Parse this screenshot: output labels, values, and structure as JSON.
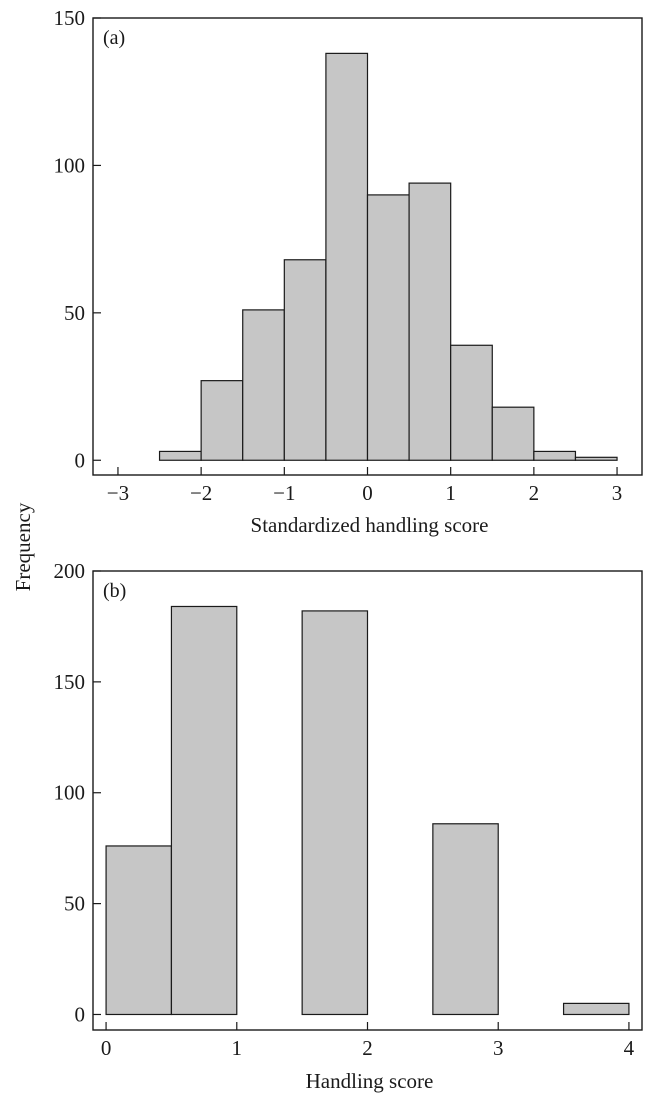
{
  "shared_ylabel": "Frequency",
  "chart_data": [
    {
      "type": "bar",
      "panel_label": "(a)",
      "xlabel": "Standardized handling score",
      "ylabel": "Frequency",
      "xlim": [
        -3.3,
        3.3
      ],
      "ylim": [
        -5,
        150
      ],
      "xticks": [
        -3,
        -2,
        -1,
        0,
        1,
        2,
        3
      ],
      "xtick_labels": [
        "−3",
        "−2",
        "−1",
        "0",
        "1",
        "2",
        "3"
      ],
      "yticks": [
        0,
        50,
        100,
        150
      ],
      "ytick_labels": [
        "0",
        "50",
        "100",
        "150"
      ],
      "bin_edges": [
        -2.5,
        -2.0,
        -1.5,
        -1.0,
        -0.5,
        0.0,
        0.5,
        1.0,
        1.5,
        2.0,
        2.5,
        3.0
      ],
      "values": [
        3,
        27,
        51,
        68,
        138,
        90,
        94,
        39,
        18,
        3,
        1
      ],
      "bar_color": "#c6c6c6",
      "edge_color": "#1a1a1a"
    },
    {
      "type": "bar",
      "panel_label": "(b)",
      "xlabel": "Handling score",
      "ylabel": "Frequency",
      "xlim": [
        -0.1,
        4.1
      ],
      "ylim": [
        -7,
        200
      ],
      "xticks": [
        0,
        1,
        2,
        3,
        4
      ],
      "xtick_labels": [
        "0",
        "1",
        "2",
        "3",
        "4"
      ],
      "yticks": [
        0,
        50,
        100,
        150,
        200
      ],
      "ytick_labels": [
        "0",
        "50",
        "100",
        "150",
        "200"
      ],
      "bin_edges": [
        0.0,
        0.5,
        1.0,
        1.5,
        2.0,
        2.5,
        3.0,
        3.5,
        4.0
      ],
      "values": [
        76,
        184,
        0,
        182,
        0,
        86,
        0,
        5
      ],
      "bar_color": "#c6c6c6",
      "edge_color": "#1a1a1a"
    }
  ]
}
